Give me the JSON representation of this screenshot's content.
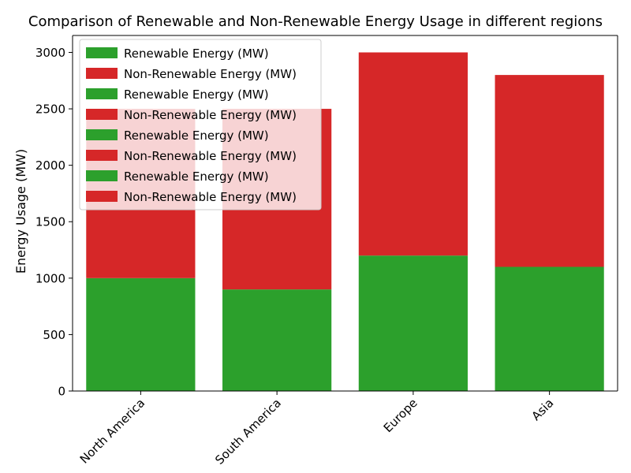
{
  "chart_data": {
    "type": "bar",
    "stacked": true,
    "title": "Comparison of Renewable and Non-Renewable Energy Usage in different regions",
    "xlabel": "",
    "ylabel": "Energy Usage (MW)",
    "categories": [
      "North America",
      "South America",
      "Europe",
      "Asia"
    ],
    "series": [
      {
        "name": "Renewable Energy (MW)",
        "color": "#2ca02c",
        "values": [
          1000,
          900,
          1200,
          1100
        ]
      },
      {
        "name": "Non-Renewable Energy (MW)",
        "color": "#d62728",
        "values": [
          1500,
          1600,
          1800,
          1700
        ]
      }
    ],
    "ylim": [
      0,
      3150
    ],
    "yticks": [
      0,
      500,
      1000,
      1500,
      2000,
      2500,
      3000
    ],
    "grid": false,
    "legend_position": "top-left",
    "legend_entries": [
      {
        "name": "Renewable Energy (MW)",
        "color": "#2ca02c"
      },
      {
        "name": "Non-Renewable Energy (MW)",
        "color": "#d62728"
      },
      {
        "name": "Renewable Energy (MW)",
        "color": "#2ca02c"
      },
      {
        "name": "Non-Renewable Energy (MW)",
        "color": "#d62728"
      },
      {
        "name": "Renewable Energy (MW)",
        "color": "#2ca02c"
      },
      {
        "name": "Non-Renewable Energy (MW)",
        "color": "#d62728"
      },
      {
        "name": "Renewable Energy (MW)",
        "color": "#2ca02c"
      },
      {
        "name": "Non-Renewable Energy (MW)",
        "color": "#d62728"
      }
    ]
  }
}
